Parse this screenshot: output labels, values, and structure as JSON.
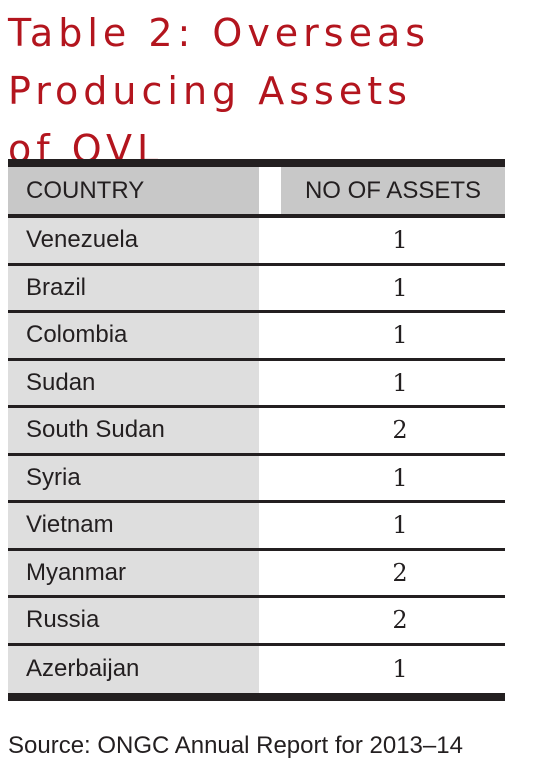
{
  "title": {
    "lines": [
      "Table 2: Overseas",
      "Producing Assets",
      "of OVL"
    ]
  },
  "table": {
    "columns": [
      "COUNTRY",
      "NO OF ASSETS"
    ],
    "rows": [
      {
        "country": "Venezuela",
        "assets": "1"
      },
      {
        "country": "Brazil",
        "assets": "1"
      },
      {
        "country": "Colombia",
        "assets": "1"
      },
      {
        "country": "Sudan",
        "assets": "1"
      },
      {
        "country": "South Sudan",
        "assets": "2"
      },
      {
        "country": "Syria",
        "assets": "1"
      },
      {
        "country": "Vietnam",
        "assets": "1"
      },
      {
        "country": "Myanmar",
        "assets": "2"
      },
      {
        "country": "Russia",
        "assets": "2"
      },
      {
        "country": "Azerbaijan",
        "assets": "1"
      }
    ]
  },
  "source": "Source: ONGC Annual Report for 2013–14",
  "colors": {
    "title": "#b3151e",
    "header_bg": "#c8c8c8",
    "country_col_bg": "#dedede",
    "rule": "#231f20"
  }
}
